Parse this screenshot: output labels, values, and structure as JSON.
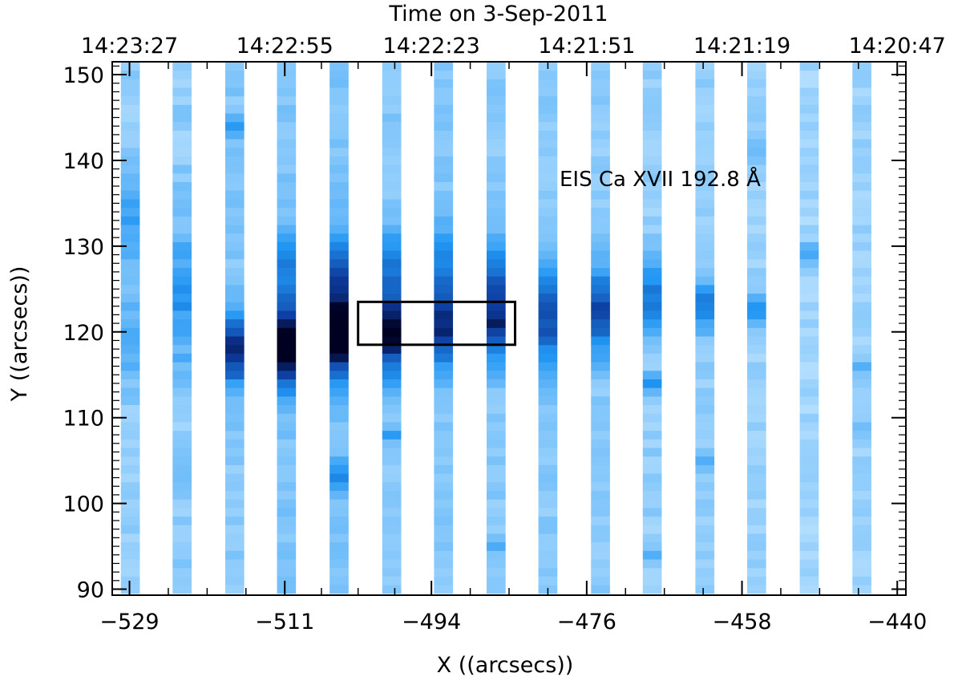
{
  "chart_data": {
    "type": "heatmap",
    "title": "",
    "annotation": "EIS Ca XVII 192.8 Å",
    "xlabel": "X ((arcsecs))",
    "ylabel": "Y ((arcsecs))",
    "top_xlabel": "Time on 3-Sep-2011",
    "xlim": [
      -531,
      -439
    ],
    "ylim": [
      89.3,
      151.5
    ],
    "x_ticks": [
      -529,
      -511,
      -494,
      -476,
      -458,
      -440
    ],
    "x_tick_labels": [
      "−529",
      "−511",
      "−494",
      "−476",
      "−458",
      "−440"
    ],
    "y_ticks": [
      90,
      100,
      110,
      120,
      130,
      140,
      150
    ],
    "y_tick_labels": [
      "90",
      "100",
      "110",
      "120",
      "130",
      "140",
      "150"
    ],
    "top_ticks": [
      -529,
      -511,
      -494,
      -476,
      -458,
      -440
    ],
    "top_tick_labels": [
      "14:23:27",
      "14:22:55",
      "14:22:23",
      "14:21:51",
      "14:21:19",
      "14:20:47"
    ],
    "y_range": [
      89.5,
      151
    ],
    "slit_width": 2.2,
    "slit_x": [
      -528.9,
      -522.9,
      -516.8,
      -510.8,
      -504.7,
      -498.6,
      -492.6,
      -486.5,
      -480.5,
      -474.4,
      -468.4,
      -462.3,
      -456.3,
      -450.2,
      -444.1
    ],
    "box": {
      "x0": -502.5,
      "x1": -484.3,
      "y0": 118.5,
      "y1": 123.5
    },
    "grid": false,
    "colors": {
      "low": "#bde3ff",
      "mid": "#2196f3",
      "high": "#0d3b9e",
      "peak": "#000022",
      "box": "#000000"
    },
    "slits": [
      {
        "peaks": [
          {
            "y": 133,
            "amp": 0.25,
            "w": 6
          },
          {
            "y": 119,
            "amp": 0.2,
            "w": 5
          }
        ],
        "base": 0.12,
        "noise": 0.06
      },
      {
        "peaks": [
          {
            "y": 124,
            "amp": 0.28,
            "w": 8
          }
        ],
        "base": 0.14,
        "noise": 0.08
      },
      {
        "peaks": [
          {
            "y": 118,
            "amp": 0.75,
            "w": 4
          },
          {
            "y": 144,
            "amp": 0.25,
            "w": 1
          }
        ],
        "base": 0.16,
        "noise": 0.06
      },
      {
        "peaks": [
          {
            "y": 118.5,
            "amp": 0.95,
            "w": 5
          },
          {
            "y": 128,
            "amp": 0.35,
            "w": 4
          }
        ],
        "base": 0.18,
        "noise": 0.05
      },
      {
        "peaks": [
          {
            "y": 119.5,
            "amp": 0.92,
            "w": 5
          },
          {
            "y": 127,
            "amp": 0.45,
            "w": 5
          },
          {
            "y": 103,
            "amp": 0.3,
            "w": 2
          }
        ],
        "base": 0.18,
        "noise": 0.05
      },
      {
        "peaks": [
          {
            "y": 120,
            "amp": 0.8,
            "w": 5
          },
          {
            "y": 128,
            "amp": 0.35,
            "w": 4
          },
          {
            "y": 108,
            "amp": 0.25,
            "w": 1
          }
        ],
        "base": 0.16,
        "noise": 0.05
      },
      {
        "peaks": [
          {
            "y": 121,
            "amp": 0.72,
            "w": 5
          },
          {
            "y": 129,
            "amp": 0.3,
            "w": 4
          }
        ],
        "base": 0.16,
        "noise": 0.05
      },
      {
        "peaks": [
          {
            "y": 121.5,
            "amp": 0.7,
            "w": 5
          },
          {
            "y": 128,
            "amp": 0.28,
            "w": 4
          },
          {
            "y": 95,
            "amp": 0.18,
            "w": 1
          }
        ],
        "base": 0.15,
        "noise": 0.05
      },
      {
        "peaks": [
          {
            "y": 122,
            "amp": 0.58,
            "w": 6
          }
        ],
        "base": 0.15,
        "noise": 0.05
      },
      {
        "peaks": [
          {
            "y": 122.5,
            "amp": 0.6,
            "w": 5
          }
        ],
        "base": 0.14,
        "noise": 0.05
      },
      {
        "peaks": [
          {
            "y": 124,
            "amp": 0.45,
            "w": 4
          },
          {
            "y": 114,
            "amp": 0.35,
            "w": 1
          },
          {
            "y": 94,
            "amp": 0.2,
            "w": 1
          }
        ],
        "base": 0.12,
        "noise": 0.06
      },
      {
        "peaks": [
          {
            "y": 123,
            "amp": 0.42,
            "w": 3
          },
          {
            "y": 105,
            "amp": 0.22,
            "w": 1
          }
        ],
        "base": 0.12,
        "noise": 0.05
      },
      {
        "peaks": [
          {
            "y": 122.5,
            "amp": 0.35,
            "w": 2
          },
          {
            "y": 142,
            "amp": 0.12,
            "w": 2
          }
        ],
        "base": 0.1,
        "noise": 0.05
      },
      {
        "peaks": [
          {
            "y": 129,
            "amp": 0.28,
            "w": 1.5
          }
        ],
        "base": 0.08,
        "noise": 0.05
      },
      {
        "peaks": [
          {
            "y": 116,
            "amp": 0.22,
            "w": 1
          },
          {
            "y": 109,
            "amp": 0.15,
            "w": 1
          }
        ],
        "base": 0.1,
        "noise": 0.05
      }
    ]
  }
}
